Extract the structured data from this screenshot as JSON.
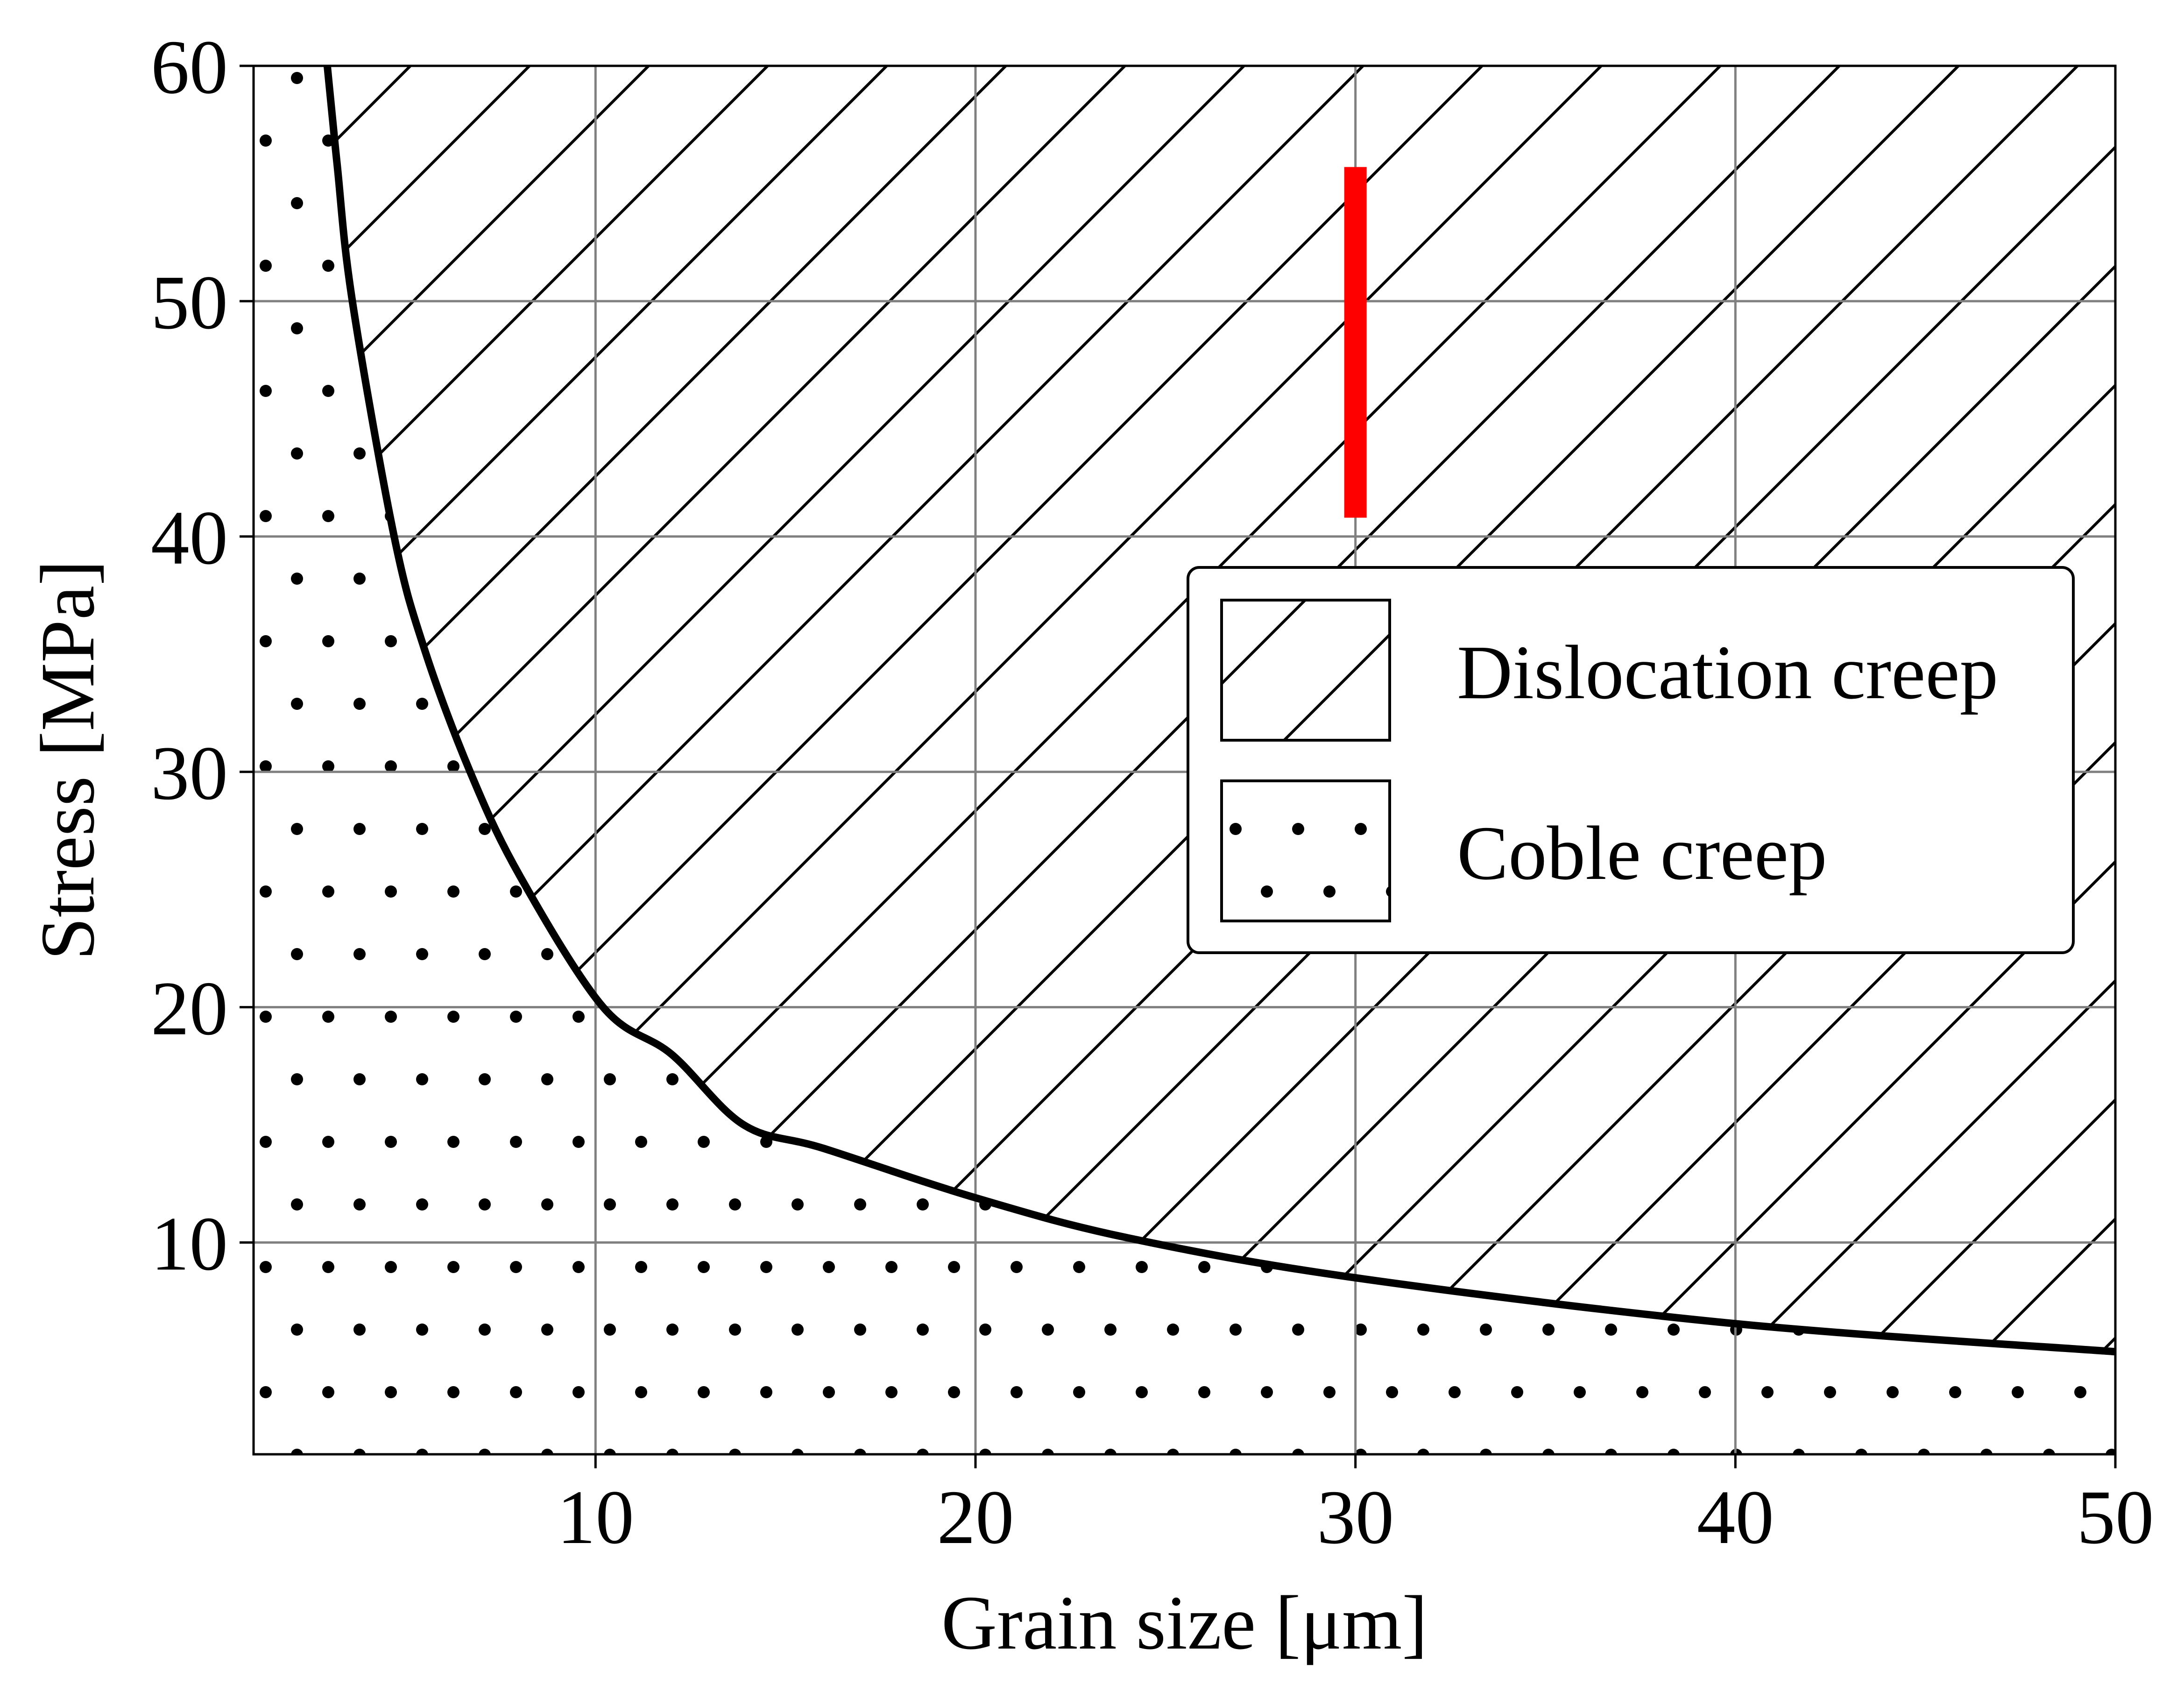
{
  "chart_data": {
    "type": "line",
    "xlabel": "Grain size [μm]",
    "ylabel": "Stress [MPa]",
    "xlim": [
      1,
      50
    ],
    "ylim": [
      1,
      60
    ],
    "xticks": [
      10,
      20,
      30,
      40,
      50
    ],
    "yticks": [
      10,
      20,
      30,
      40,
      50,
      60
    ],
    "grid": true,
    "legend": "center right",
    "boundary": {
      "color": "#000000",
      "x": [
        2.94,
        3.2,
        3.6,
        4.7,
        5.5,
        6.7,
        8,
        10.2,
        12,
        13.9,
        16,
        20,
        24,
        30,
        40,
        50
      ],
      "values": [
        60,
        55.8,
        50,
        40,
        35.2,
        30,
        25.6,
        20,
        18,
        15,
        14,
        11.9,
        10.2,
        8.5,
        6.55,
        5.36
      ]
    },
    "regions": [
      {
        "name": "Dislocation creep",
        "hatch": "/",
        "side": "above"
      },
      {
        "name": "Coble creep",
        "hatch": ".",
        "side": "below"
      }
    ],
    "marker": {
      "color": "#ff0000",
      "x": [
        30,
        30
      ],
      "values": [
        40.8,
        55.7
      ]
    }
  }
}
